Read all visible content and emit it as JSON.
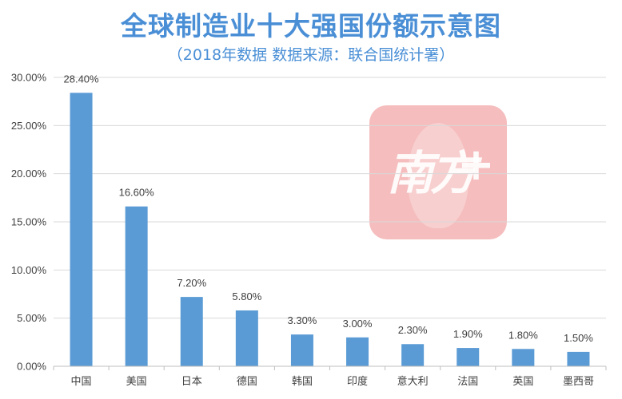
{
  "header": {
    "title": "全球制造业十大强国份额示意图",
    "subtitle": "（2018年数据  数据来源：联合国统计署）"
  },
  "watermark": {
    "text": "南方",
    "plus": "+"
  },
  "chart_data": {
    "type": "bar",
    "title": "全球制造业十大强国份额示意图",
    "subtitle": "（2018年数据  数据来源：联合国统计署）",
    "categories": [
      "中国",
      "美国",
      "日本",
      "德国",
      "韩国",
      "印度",
      "意大利",
      "法国",
      "英国",
      "墨西哥"
    ],
    "values": [
      28.4,
      16.6,
      7.2,
      5.8,
      3.3,
      3.0,
      2.3,
      1.9,
      1.8,
      1.5
    ],
    "data_labels": [
      "28.40%",
      "16.60%",
      "7.20%",
      "5.80%",
      "3.30%",
      "3.00%",
      "2.30%",
      "1.90%",
      "1.80%",
      "1.50%"
    ],
    "ylim": [
      0,
      30
    ],
    "yticks": [
      0,
      5,
      10,
      15,
      20,
      25,
      30
    ],
    "ytick_labels": [
      "0.00%",
      "5.00%",
      "10.00%",
      "15.00%",
      "20.00%",
      "25.00%",
      "30.00%"
    ],
    "xlabel": "",
    "ylabel": "",
    "grid": true,
    "bar_color": "#5b9bd5",
    "grid_color": "#d9d9d9"
  }
}
